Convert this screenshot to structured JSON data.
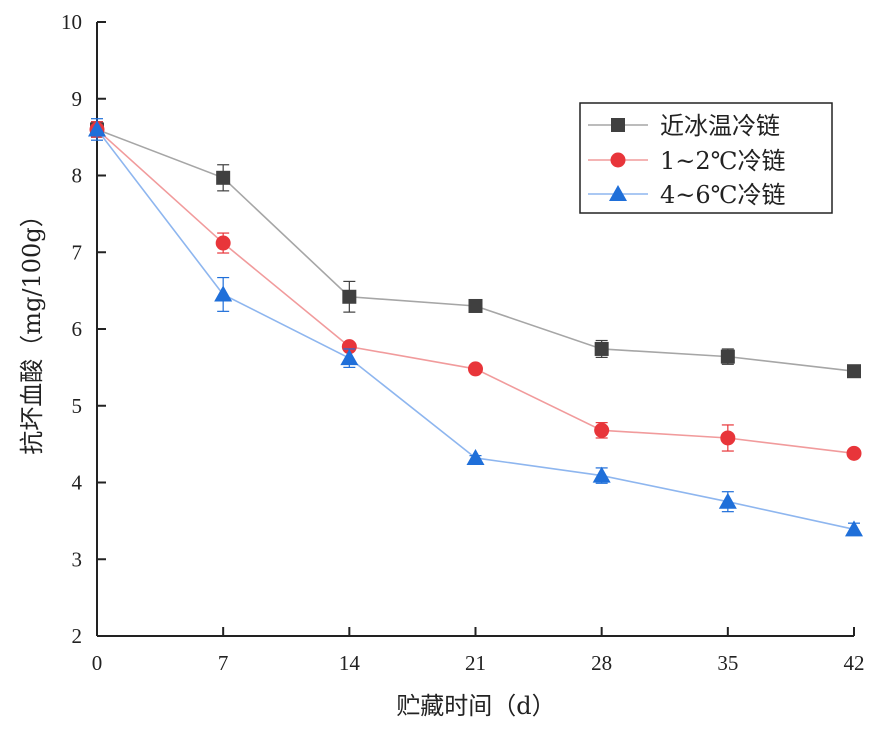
{
  "chart_data": {
    "type": "line",
    "xlabel": "贮藏时间（d）",
    "ylabel": "抗坏血酸（mg/100g）",
    "x": [
      0,
      7,
      14,
      21,
      28,
      35,
      42
    ],
    "xlim": [
      0,
      42
    ],
    "ylim": [
      2,
      10
    ],
    "xticks": [
      "0",
      "7",
      "14",
      "21",
      "28",
      "35",
      "42"
    ],
    "yticks": [
      "2",
      "3",
      "4",
      "5",
      "6",
      "7",
      "8",
      "9",
      "10"
    ],
    "grid": false,
    "legend_position": "top-right",
    "series": [
      {
        "name": "近冰温冷链",
        "marker": "square",
        "color": "#404040",
        "line_color": "#a6a6a6",
        "values": [
          8.6,
          7.97,
          6.42,
          6.3,
          5.74,
          5.64,
          5.45
        ],
        "errors": [
          0.1,
          0.17,
          0.2,
          0.06,
          0.11,
          0.1,
          0.06
        ]
      },
      {
        "name": "1~2℃冷链",
        "marker": "circle",
        "color": "#e8353a",
        "line_color": "#f19b9c",
        "values": [
          8.6,
          7.12,
          5.77,
          5.48,
          4.68,
          4.58,
          4.38
        ],
        "errors": [
          0.1,
          0.13,
          0.04,
          0.05,
          0.1,
          0.17,
          0.04
        ]
      },
      {
        "name": "4~6℃冷链",
        "marker": "triangle",
        "color": "#1f6fd9",
        "line_color": "#8eb6ef",
        "values": [
          8.6,
          6.45,
          5.62,
          4.32,
          4.09,
          3.75,
          3.39
        ],
        "errors": [
          0.14,
          0.22,
          0.12,
          0.03,
          0.1,
          0.13,
          0.08
        ]
      }
    ]
  }
}
